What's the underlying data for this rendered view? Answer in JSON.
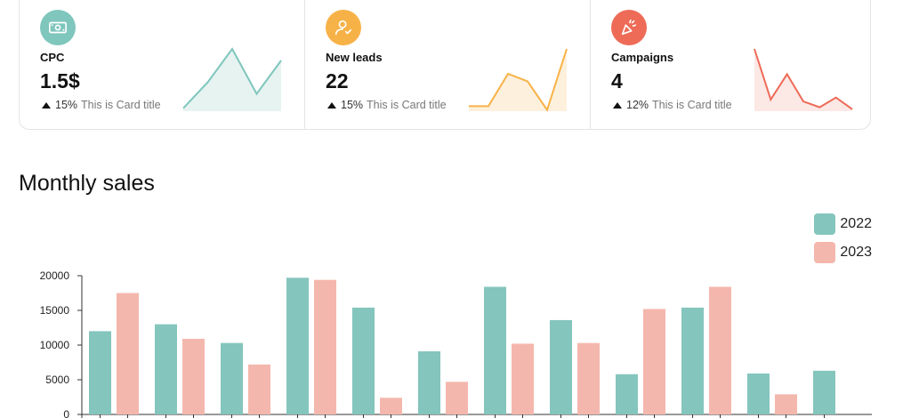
{
  "cards": [
    {
      "label": "CPC",
      "value": "1.5$",
      "delta": "15%",
      "subtitle": "This is Card title",
      "icon": "money-icon",
      "icon_bg": "#7fc6bd",
      "accent": "#7fc6bd",
      "fill": "#e6f3f1",
      "trend": [
        2,
        20,
        43,
        12,
        35
      ]
    },
    {
      "label": "New leads",
      "value": "22",
      "delta": "15%",
      "subtitle": "This is Card title",
      "icon": "user-check-icon",
      "icon_bg": "#f7b247",
      "accent": "#f7b247",
      "fill": "#fdf0dc",
      "trend": [
        4,
        4,
        30,
        24,
        1,
        50
      ]
    },
    {
      "label": "Campaigns",
      "value": "4",
      "delta": "12%",
      "subtitle": "This is Card title",
      "icon": "party-popper-icon",
      "icon_bg": "#ed6b57",
      "accent": "#ed6b57",
      "fill": "#fce8e5",
      "trend": [
        32,
        6,
        19,
        5,
        2,
        7,
        1
      ]
    }
  ],
  "section_title": "Monthly sales",
  "chart_data": {
    "type": "bar",
    "ylim": [
      0,
      20000
    ],
    "yticks": [
      "0",
      "5000",
      "10000",
      "15000",
      "20000"
    ],
    "categories": [
      "",
      "",
      "",
      "",
      "",
      "",
      "",
      "",
      "",
      "",
      "",
      ""
    ],
    "series": [
      {
        "name": "2022",
        "color": "#84c5bd",
        "values": [
          12000,
          13000,
          10300,
          19700,
          15400,
          9100,
          18400,
          13600,
          5800,
          15400,
          5900,
          6300
        ]
      },
      {
        "name": "2023",
        "color": "#f4b7ad",
        "values": [
          17500,
          10900,
          7200,
          19400,
          2400,
          4700,
          10200,
          10300,
          15200,
          18400,
          2900,
          null
        ]
      }
    ],
    "legend": "top-right",
    "grid": false
  }
}
